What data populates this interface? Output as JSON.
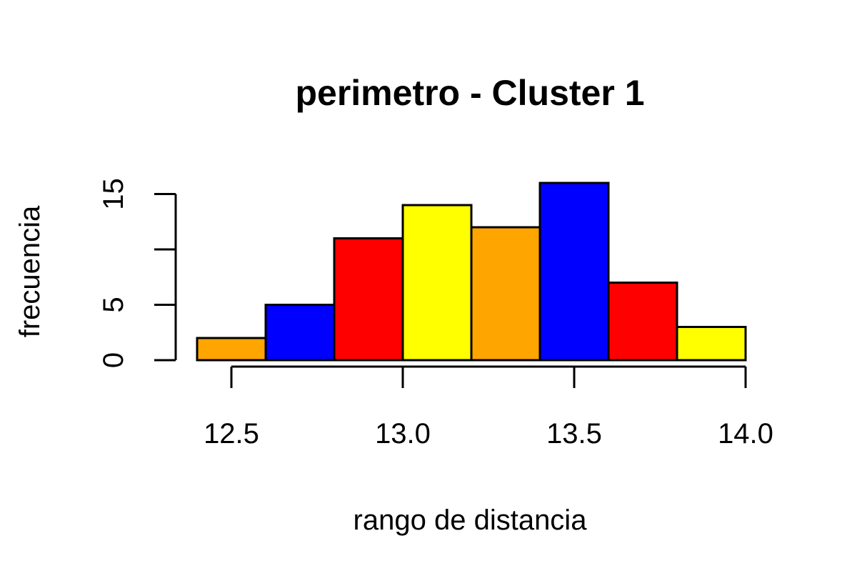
{
  "chart_data": {
    "type": "bar",
    "title": "perimetro - Cluster 1",
    "xlabel": "rango de distancia",
    "ylabel": "frecuencia",
    "bins": [
      {
        "from": 12.4,
        "to": 12.6,
        "value": 2,
        "color": "#FFA500"
      },
      {
        "from": 12.6,
        "to": 12.8,
        "value": 5,
        "color": "#0000FF"
      },
      {
        "from": 12.8,
        "to": 13.0,
        "value": 11,
        "color": "#FF0000"
      },
      {
        "from": 13.0,
        "to": 13.2,
        "value": 14,
        "color": "#FFFF00"
      },
      {
        "from": 13.2,
        "to": 13.4,
        "value": 12,
        "color": "#FFA500"
      },
      {
        "from": 13.4,
        "to": 13.6,
        "value": 16,
        "color": "#0000FF"
      },
      {
        "from": 13.6,
        "to": 13.8,
        "value": 7,
        "color": "#FF0000"
      },
      {
        "from": 13.8,
        "to": 14.0,
        "value": 3,
        "color": "#FFFF00"
      }
    ],
    "xlim": [
      12.4,
      14.0
    ],
    "ylim": [
      0,
      16
    ],
    "x_ticks": [
      12.5,
      13.0,
      13.5,
      14.0
    ],
    "x_tick_labels": [
      "12.5",
      "13.0",
      "13.5",
      "14.0"
    ],
    "y_ticks": [
      0,
      5,
      10,
      15
    ],
    "y_tick_labels": [
      "0",
      "5",
      "",
      "15"
    ],
    "grid": false,
    "legend": "none"
  }
}
